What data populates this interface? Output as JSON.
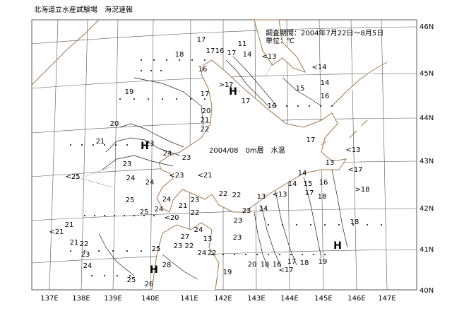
{
  "header": {
    "title": "北海道立水産試験場　海況速報"
  },
  "period": "調査期間：2004年7月22日～8月5日",
  "unit": "単位：℃",
  "map_label": "2004/08　0m層　水温",
  "longitude_labels": [
    "137E",
    "138E",
    "139E",
    "140E",
    "141E",
    "142E",
    "143E",
    "144E",
    "145E",
    "146E",
    "147E"
  ],
  "latitude_labels": [
    "46N",
    "45N",
    "44N",
    "43N",
    "42N",
    "41N",
    "40N"
  ],
  "markers": [
    "H",
    "H",
    "H",
    "H"
  ],
  "isotherm_labels": [
    "17",
    "18",
    "17",
    "16",
    "17",
    "11",
    "14",
    "<13",
    "<14",
    "16",
    ">17",
    "15",
    "14",
    "16",
    "17",
    "16",
    "19",
    "17",
    "20",
    "21",
    "22",
    "20",
    "21",
    "17",
    "<13",
    "23",
    "24",
    "23",
    "23",
    "<23",
    "<21",
    "13",
    "<17",
    "<25",
    "24",
    "24",
    "14",
    "14",
    "15",
    "16",
    "17",
    "18",
    ">18",
    "<13",
    "13",
    "14",
    "22",
    "22",
    "25",
    "24",
    "23",
    "21",
    "23",
    "24",
    "25",
    "23",
    "<20",
    "22",
    "21",
    "<21",
    "18",
    "21",
    "22",
    "27",
    "23",
    "22",
    "24",
    "13",
    "23",
    "25",
    "23",
    "24",
    "22",
    "24",
    "28",
    "20",
    "18",
    "16",
    "17",
    "<17",
    "18",
    "19",
    "19",
    "25",
    "26"
  ]
}
